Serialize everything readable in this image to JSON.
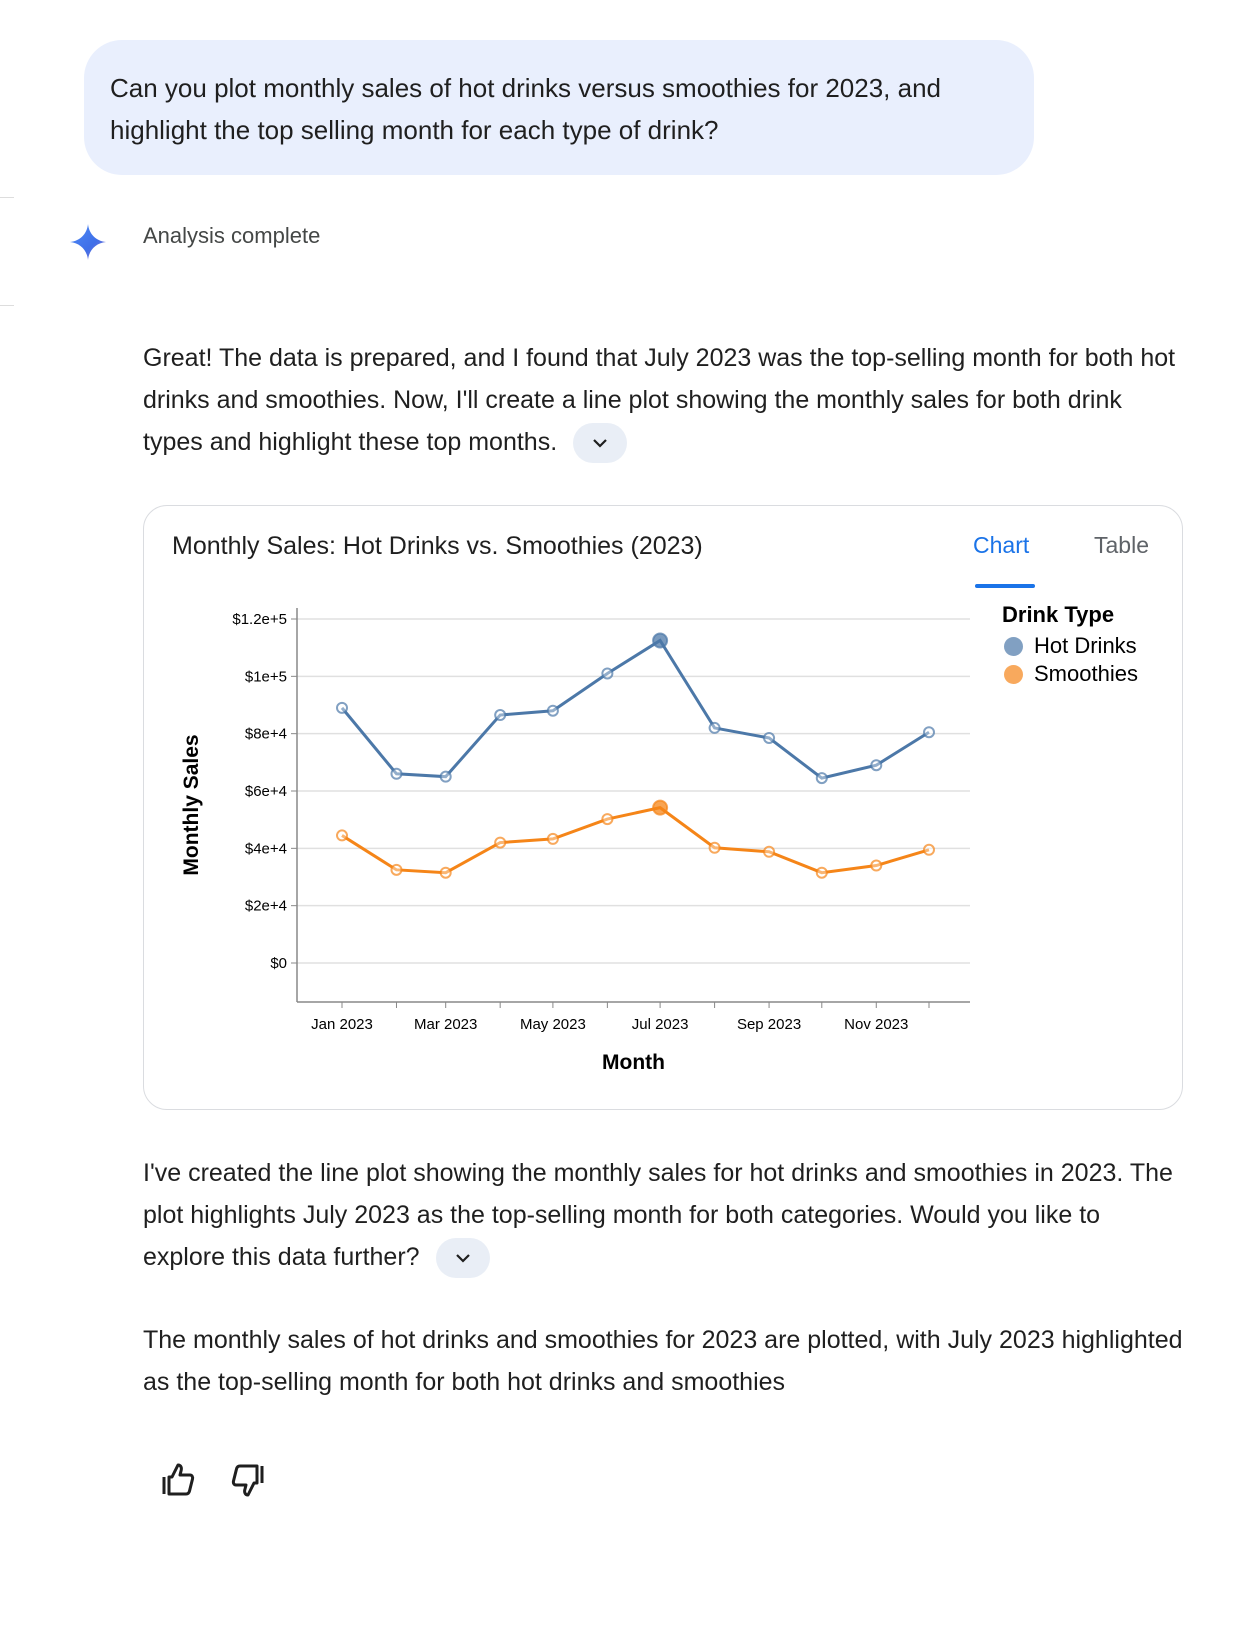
{
  "user_message": "Can you plot monthly sales of hot drinks versus smoothies for 2023, and highlight the top selling month for each type of drink?",
  "status": "Analysis complete",
  "paragraph1": "Great! The data is prepared, and I found that July 2023 was the top-selling month for both hot drinks and smoothies. Now, I'll create a line plot showing the monthly sales for both drink types and highlight these top months.",
  "paragraph2": "I've created the line plot showing the monthly sales for hot drinks and smoothies in 2023. The plot highlights July 2023 as the top-selling month for both categories. Would you like to explore this data further?",
  "paragraph3": "The monthly sales of hot drinks and smoothies for 2023 are plotted, with July 2023 highlighted as the top-selling month for both hot drinks and smoothies",
  "card": {
    "title": "Monthly Sales: Hot Drinks vs. Smoothies (2023)",
    "tabs": [
      {
        "label": "Chart",
        "active": true
      },
      {
        "label": "Table",
        "active": false
      }
    ]
  },
  "icons": {
    "sparkle": "gemini-sparkle-icon",
    "expand": "chevron-down-icon",
    "like": "thumbs-up-icon",
    "dislike": "thumbs-down-icon"
  },
  "colors": {
    "accent": "#1a73e8",
    "hot_drinks": "#4c78a8",
    "smoothies": "#f58518"
  },
  "chart_data": {
    "type": "line",
    "xlabel": "Month",
    "ylabel": "Monthly Sales",
    "x": [
      "2023-01-01",
      "2023-02-01",
      "2023-03-01",
      "2023-04-01",
      "2023-05-01",
      "2023-06-01",
      "2023-07-01",
      "2023-08-01",
      "2023-09-01",
      "2023-10-01",
      "2023-11-01",
      "2023-12-01"
    ],
    "x_tick_labels": [
      "Jan 2023",
      "Mar 2023",
      "May 2023",
      "Jul 2023",
      "Sep 2023",
      "Nov 2023"
    ],
    "y_ticks": [
      0,
      20000,
      40000,
      60000,
      80000,
      100000,
      120000
    ],
    "y_tick_labels": [
      "$0",
      "$2e+4",
      "$4e+4",
      "$6e+4",
      "$8e+4",
      "$1e+5",
      "$1.2e+5"
    ],
    "ylim": [
      0,
      120000
    ],
    "grid": true,
    "legend": {
      "title": "Drink Type",
      "placement": "right"
    },
    "series": [
      {
        "name": "Hot Drinks",
        "color": "#4c78a8",
        "values": [
          89000,
          66000,
          65000,
          86500,
          88000,
          101000,
          112500,
          82000,
          78500,
          64500,
          69000,
          80500
        ],
        "highlight": "2023-07-01"
      },
      {
        "name": "Smoothies",
        "color": "#f58518",
        "values": [
          44500,
          32500,
          31500,
          42000,
          43300,
          50200,
          54200,
          40200,
          38800,
          31500,
          34000,
          39500
        ],
        "highlight": "2023-07-01"
      }
    ]
  }
}
